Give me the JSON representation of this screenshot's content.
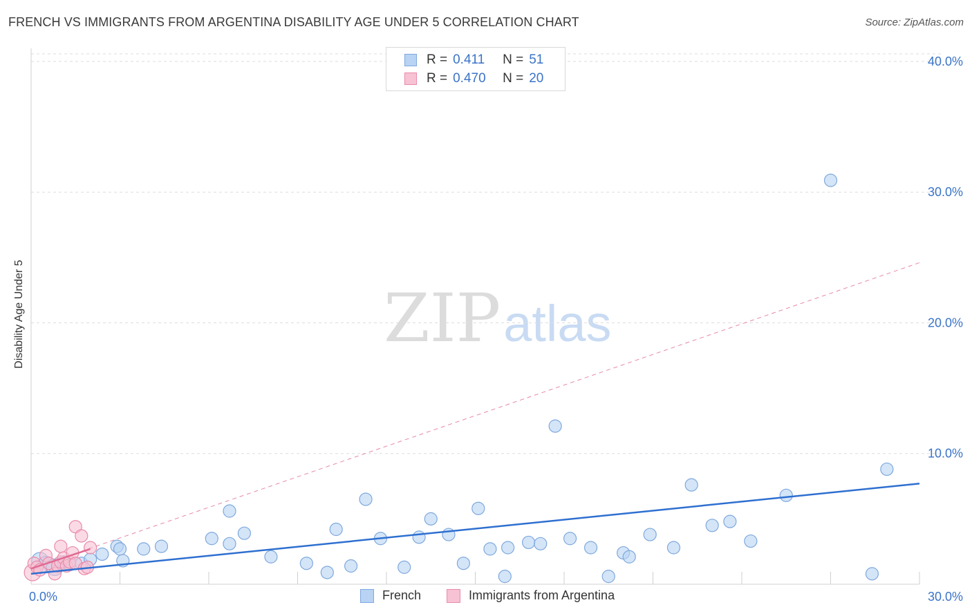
{
  "title": "FRENCH VS IMMIGRANTS FROM ARGENTINA DISABILITY AGE UNDER 5 CORRELATION CHART",
  "source": "Source: ZipAtlas.com",
  "watermark": {
    "zip": "ZIP",
    "atlas": "atlas"
  },
  "legend": {
    "rows": [
      {
        "r_label": "R =",
        "r_value": "0.411",
        "n_label": "N =",
        "n_value": "51"
      },
      {
        "r_label": "R =",
        "r_value": "0.470",
        "n_label": "N =",
        "n_value": "20"
      }
    ]
  },
  "bottom_legend": [
    {
      "label": "French"
    },
    {
      "label": "Immigrants from Argentina"
    }
  ],
  "colors": {
    "french_fill": "#b8d3f3",
    "french_stroke": "#7ea8dd",
    "french_line": "#2e6fd0",
    "arg_fill": "#f7c2d3",
    "arg_stroke": "#e98aa9",
    "arg_line": "#e06a90",
    "grid": "#dddddd",
    "tick_label": "#3a73c8"
  },
  "chart_data": {
    "type": "scatter",
    "title": "FRENCH VS IMMIGRANTS FROM ARGENTINA DISABILITY AGE UNDER 5 CORRELATION CHART",
    "xlabel": "",
    "ylabel": "Disability Age Under 5",
    "xlim": [
      0,
      30
    ],
    "ylim": [
      0,
      41
    ],
    "x_tick_labels": [
      "0.0%",
      "30.0%"
    ],
    "y_ticks": [
      10,
      20,
      30,
      40
    ],
    "y_tick_labels": [
      "10.0%",
      "20.0%",
      "30.0%",
      "40.0%"
    ],
    "grid": true,
    "legend_position": "top-center",
    "series": [
      {
        "name": "French",
        "points": [
          [
            0.3,
            1.8
          ],
          [
            0.5,
            1.5
          ],
          [
            0.8,
            1.3
          ],
          [
            1.1,
            1.7
          ],
          [
            1.3,
            1.5
          ],
          [
            1.7,
            1.6
          ],
          [
            2.0,
            1.9
          ],
          [
            2.4,
            2.3
          ],
          [
            2.9,
            2.9
          ],
          [
            3.0,
            2.7
          ],
          [
            3.1,
            1.8
          ],
          [
            3.8,
            2.7
          ],
          [
            4.4,
            2.9
          ],
          [
            6.1,
            3.5
          ],
          [
            6.7,
            3.1
          ],
          [
            7.2,
            3.9
          ],
          [
            6.7,
            5.6
          ],
          [
            8.1,
            2.1
          ],
          [
            9.3,
            1.6
          ],
          [
            10.3,
            4.2
          ],
          [
            10.0,
            0.9
          ],
          [
            10.8,
            1.4
          ],
          [
            11.3,
            6.5
          ],
          [
            11.8,
            3.5
          ],
          [
            12.6,
            1.3
          ],
          [
            13.1,
            3.6
          ],
          [
            13.5,
            5.0
          ],
          [
            14.1,
            3.8
          ],
          [
            14.6,
            1.6
          ],
          [
            15.1,
            5.8
          ],
          [
            15.5,
            2.7
          ],
          [
            16.0,
            0.6
          ],
          [
            16.1,
            2.8
          ],
          [
            16.8,
            3.2
          ],
          [
            17.2,
            3.1
          ],
          [
            17.7,
            12.1
          ],
          [
            18.2,
            3.5
          ],
          [
            18.9,
            2.8
          ],
          [
            19.5,
            0.6
          ],
          [
            20.0,
            2.4
          ],
          [
            20.2,
            2.1
          ],
          [
            20.9,
            3.8
          ],
          [
            21.7,
            2.8
          ],
          [
            22.3,
            7.6
          ],
          [
            23.0,
            4.5
          ],
          [
            23.6,
            4.8
          ],
          [
            24.3,
            3.3
          ],
          [
            25.5,
            6.8
          ],
          [
            27.0,
            30.9
          ],
          [
            28.9,
            8.8
          ],
          [
            28.4,
            0.8
          ]
        ],
        "trend": {
          "x": [
            0,
            30
          ],
          "y": [
            0.8,
            7.7
          ]
        }
      },
      {
        "name": "Immigrants from Argentina",
        "points": [
          [
            0.05,
            0.9
          ],
          [
            0.1,
            1.6
          ],
          [
            0.2,
            1.3
          ],
          [
            0.3,
            1.1
          ],
          [
            0.5,
            2.2
          ],
          [
            0.6,
            1.6
          ],
          [
            0.8,
            0.8
          ],
          [
            0.9,
            1.4
          ],
          [
            1.0,
            1.7
          ],
          [
            1.0,
            2.9
          ],
          [
            1.1,
            2.0
          ],
          [
            1.2,
            1.4
          ],
          [
            1.3,
            1.7
          ],
          [
            1.4,
            2.4
          ],
          [
            1.5,
            1.6
          ],
          [
            1.5,
            4.4
          ],
          [
            1.7,
            3.7
          ],
          [
            1.8,
            1.2
          ],
          [
            1.9,
            1.3
          ],
          [
            2.0,
            2.8
          ]
        ],
        "trend": {
          "x": [
            0,
            2.0
          ],
          "y": [
            1.2,
            2.7
          ]
        },
        "trend_extended": {
          "x": [
            0,
            30
          ],
          "y": [
            1.2,
            24.6
          ]
        }
      }
    ]
  }
}
